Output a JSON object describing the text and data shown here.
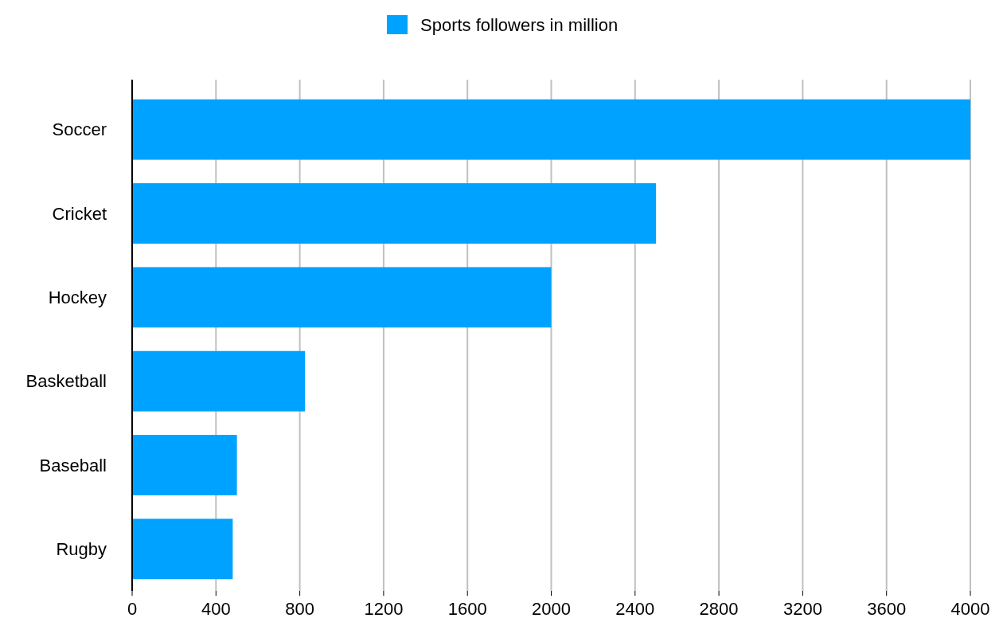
{
  "chart_data": {
    "type": "bar",
    "orientation": "horizontal",
    "categories": [
      "Soccer",
      "Cricket",
      "Hockey",
      "Basketball",
      "Baseball",
      "Rugby"
    ],
    "series": [
      {
        "name": "Sports followers in million",
        "color": "#00a2ff",
        "values": [
          4000,
          2500,
          2000,
          825,
          500,
          480
        ]
      }
    ],
    "xlim": [
      0,
      4000
    ],
    "xticks": [
      0,
      400,
      800,
      1200,
      1600,
      2000,
      2400,
      2800,
      3200,
      3600,
      4000
    ],
    "grid": "x",
    "legend": "top"
  }
}
